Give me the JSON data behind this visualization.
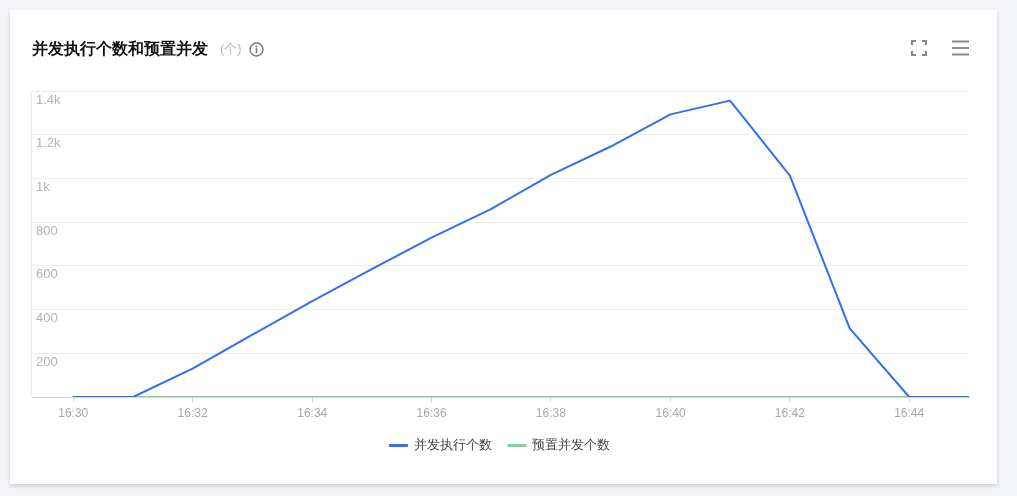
{
  "chart_data": {
    "type": "line",
    "title": "并发执行个数和预置并发",
    "subtitle": "(个)",
    "x": [
      16.5,
      16.5167,
      16.5333,
      16.55,
      16.5667,
      16.5833,
      16.6,
      16.6167,
      16.6333,
      16.65,
      16.6667,
      16.6833,
      16.7,
      16.7167,
      16.7333,
      16.75
    ],
    "series": [
      {
        "name": "并发执行个数",
        "color": "#2f6ff5",
        "values": [
          0,
          0,
          130,
          285,
          439,
          585,
          729,
          861,
          1016,
          1146,
          1293,
          1356,
          1013,
          314,
          0,
          0
        ]
      },
      {
        "name": "预置并发个数",
        "color": "#7ad69c",
        "values": [
          null,
          0,
          0,
          0,
          0,
          0,
          0,
          0,
          0,
          0,
          0,
          0,
          0,
          0,
          0,
          null
        ]
      }
    ],
    "xlim": [
      16.4882,
      16.75
    ],
    "xticks": [
      {
        "value": 16.5,
        "label": "16:30"
      },
      {
        "value": 16.5333,
        "label": "16:32"
      },
      {
        "value": 16.5667,
        "label": "16:34"
      },
      {
        "value": 16.6,
        "label": "16:36"
      },
      {
        "value": 16.6333,
        "label": "16:38"
      },
      {
        "value": 16.6667,
        "label": "16:40"
      },
      {
        "value": 16.7,
        "label": "16:42"
      },
      {
        "value": 16.7333,
        "label": "16:44"
      }
    ],
    "ylim": [
      0,
      1400
    ],
    "yticks": [
      {
        "value": 0,
        "label": null
      },
      200,
      400,
      600,
      800,
      {
        "value": 1000,
        "label": "1k"
      },
      {
        "value": 1200,
        "label": "1.2k"
      },
      {
        "value": 1400,
        "label": "1.4k"
      }
    ],
    "grid": "y",
    "legend": "bottom",
    "marker": "none",
    "line_style": "solid"
  }
}
